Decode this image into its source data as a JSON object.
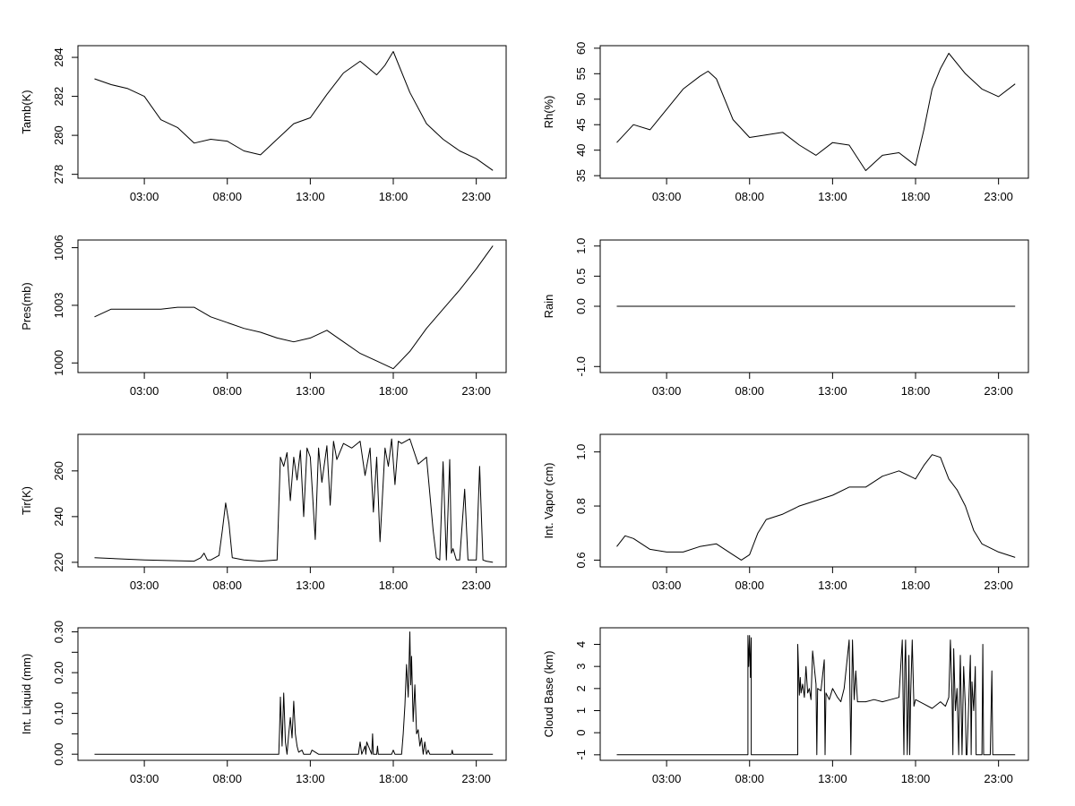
{
  "chart_data": [
    {
      "type": "line",
      "ylabel": "Tamb(K)",
      "xlim": [
        -1,
        24.8
      ],
      "ylim": [
        277.8,
        284.6
      ],
      "xticks": [
        3,
        8,
        13,
        18,
        23
      ],
      "xtick_labels": [
        "03:00",
        "08:00",
        "13:00",
        "18:00",
        "23:00"
      ],
      "yticks": [
        278,
        280,
        282,
        284
      ],
      "ytick_labels": [
        "278",
        "280",
        "282",
        "284"
      ],
      "series": [
        {
          "color": "#000000",
          "x": [
            0,
            1,
            2,
            3,
            4,
            5,
            6,
            7,
            8,
            9,
            10,
            11,
            12,
            13,
            14,
            15,
            16,
            17,
            17.5,
            18,
            19,
            20,
            21,
            22,
            23,
            24
          ],
          "y": [
            282.9,
            282.6,
            282.4,
            282.0,
            280.8,
            280.4,
            279.6,
            279.8,
            279.7,
            279.2,
            279.0,
            279.8,
            280.6,
            280.9,
            282.1,
            283.2,
            283.8,
            283.1,
            283.6,
            284.3,
            282.2,
            280.6,
            279.8,
            279.2,
            278.8,
            278.2
          ]
        }
      ]
    },
    {
      "type": "line",
      "ylabel": "Rh(%)",
      "xlim": [
        -1,
        24.8
      ],
      "ylim": [
        34.5,
        60.5
      ],
      "xticks": [
        3,
        8,
        13,
        18,
        23
      ],
      "xtick_labels": [
        "03:00",
        "08:00",
        "13:00",
        "18:00",
        "23:00"
      ],
      "yticks": [
        35,
        40,
        45,
        50,
        55,
        60
      ],
      "ytick_labels": [
        "35",
        "40",
        "45",
        "50",
        "55",
        "60"
      ],
      "series": [
        {
          "color": "#000000",
          "x": [
            0,
            1,
            2,
            3,
            4,
            5,
            5.5,
            6,
            7,
            8,
            9,
            10,
            11,
            12,
            13,
            14,
            15,
            16,
            17,
            18,
            18.5,
            19,
            19.5,
            20,
            21,
            22,
            23,
            24
          ],
          "y": [
            41.5,
            45.0,
            44.0,
            48.0,
            52.0,
            54.5,
            55.5,
            54.0,
            46.0,
            42.5,
            43.0,
            43.5,
            41.0,
            39.0,
            41.5,
            41.0,
            36.0,
            39.0,
            39.5,
            37.0,
            44.0,
            52.0,
            56.0,
            59.0,
            55.0,
            52.0,
            50.5,
            53.0
          ]
        }
      ]
    },
    {
      "type": "line",
      "ylabel": "Pres(mb)",
      "xlim": [
        -1,
        24.8
      ],
      "ylim": [
        999.5,
        1006.4
      ],
      "xticks": [
        3,
        8,
        13,
        18,
        23
      ],
      "xtick_labels": [
        "03:00",
        "08:00",
        "13:00",
        "18:00",
        "23:00"
      ],
      "yticks": [
        1000,
        1003,
        1006
      ],
      "ytick_labels": [
        "1000",
        "1003",
        "1006"
      ],
      "series": [
        {
          "color": "#000000",
          "x": [
            0,
            1,
            2,
            3,
            4,
            5,
            6,
            7,
            8,
            9,
            10,
            11,
            12,
            13,
            14,
            15,
            16,
            17,
            18,
            19,
            20,
            21,
            22,
            23,
            24
          ],
          "y": [
            1002.4,
            1002.8,
            1002.8,
            1002.8,
            1002.8,
            1002.9,
            1002.9,
            1002.4,
            1002.1,
            1001.8,
            1001.6,
            1001.3,
            1001.1,
            1001.3,
            1001.7,
            1001.1,
            1000.5,
            1000.1,
            999.7,
            1000.6,
            1001.8,
            1002.8,
            1003.8,
            1004.9,
            1006.1
          ]
        }
      ]
    },
    {
      "type": "line",
      "ylabel": "Rain",
      "xlim": [
        -1,
        24.8
      ],
      "ylim": [
        -1.1,
        1.1
      ],
      "xticks": [
        3,
        8,
        13,
        18,
        23
      ],
      "xtick_labels": [
        "03:00",
        "08:00",
        "13:00",
        "18:00",
        "23:00"
      ],
      "yticks": [
        -1.0,
        0.0,
        0.5,
        1.0
      ],
      "ytick_labels": [
        "-1.0",
        "0.0",
        "0.5",
        "1.0"
      ],
      "series": [
        {
          "color": "#000000",
          "x": [
            0,
            24
          ],
          "y": [
            0,
            0
          ]
        }
      ]
    },
    {
      "type": "line",
      "ylabel": "Tir(K)",
      "xlim": [
        -1,
        24.8
      ],
      "ylim": [
        218,
        276
      ],
      "xticks": [
        3,
        8,
        13,
        18,
        23
      ],
      "xtick_labels": [
        "03:00",
        "08:00",
        "13:00",
        "18:00",
        "23:00"
      ],
      "yticks": [
        220,
        240,
        260
      ],
      "ytick_labels": [
        "220",
        "240",
        "260"
      ],
      "series": [
        {
          "color": "#000000",
          "x": [
            0,
            3,
            6,
            6.4,
            6.6,
            6.8,
            7,
            7.5,
            7.7,
            7.9,
            8.1,
            8.3,
            9,
            10,
            11,
            11.2,
            11.4,
            11.6,
            11.8,
            12,
            12.2,
            12.4,
            12.6,
            12.8,
            13,
            13.3,
            13.5,
            13.7,
            14,
            14.2,
            14.4,
            14.6,
            15,
            15.5,
            16,
            16.3,
            16.6,
            16.8,
            17,
            17.2,
            17.5,
            17.7,
            17.9,
            18.1,
            18.3,
            18.5,
            19,
            19.5,
            20,
            20.2,
            20.4,
            20.6,
            20.8,
            21,
            21.2,
            21.4,
            21.5,
            21.6,
            21.8,
            22,
            22.3,
            22.5,
            23,
            23.2,
            23.4,
            23.6,
            24
          ],
          "y": [
            222,
            221,
            220.5,
            222,
            224,
            221,
            221,
            223,
            234,
            246,
            237,
            222,
            221,
            220.5,
            221,
            266,
            262,
            268,
            247,
            266,
            256,
            269,
            240,
            270,
            266,
            230,
            270,
            255,
            271,
            245,
            273,
            265,
            272,
            270,
            273,
            258,
            270,
            242,
            266,
            229,
            270,
            262,
            274,
            254,
            273,
            272,
            274,
            263,
            266,
            250,
            234,
            222,
            221,
            264,
            221,
            265,
            224,
            226,
            221,
            221,
            252,
            221,
            221,
            262,
            221,
            220.5,
            220
          ]
        }
      ]
    },
    {
      "type": "line",
      "ylabel": "Int. Vapor (cm)",
      "xlim": [
        -1,
        24.8
      ],
      "ylim": [
        0.575,
        1.065
      ],
      "xticks": [
        3,
        8,
        13,
        18,
        23
      ],
      "xtick_labels": [
        "03:00",
        "08:00",
        "13:00",
        "18:00",
        "23:00"
      ],
      "yticks": [
        0.6,
        0.8,
        1.0
      ],
      "ytick_labels": [
        "0.6",
        "0.8",
        "1.0"
      ],
      "series": [
        {
          "color": "#000000",
          "x": [
            0,
            0.5,
            1,
            2,
            3,
            4,
            5,
            6,
            7,
            7.5,
            8,
            8.5,
            9,
            10,
            11,
            12,
            13,
            14,
            15,
            16,
            17,
            18,
            18.5,
            19,
            19.5,
            20,
            20.5,
            21,
            21.5,
            22,
            23,
            24
          ],
          "y": [
            0.65,
            0.69,
            0.68,
            0.64,
            0.63,
            0.63,
            0.65,
            0.66,
            0.62,
            0.6,
            0.62,
            0.7,
            0.75,
            0.77,
            0.8,
            0.82,
            0.84,
            0.87,
            0.87,
            0.91,
            0.93,
            0.9,
            0.95,
            0.99,
            0.98,
            0.9,
            0.86,
            0.8,
            0.71,
            0.66,
            0.63,
            0.61
          ]
        }
      ]
    },
    {
      "type": "line",
      "ylabel": "Int. Liquid (mm)",
      "xlim": [
        -1,
        24.8
      ],
      "ylim": [
        -0.015,
        0.31
      ],
      "xticks": [
        3,
        8,
        13,
        18,
        23
      ],
      "xtick_labels": [
        "03:00",
        "08:00",
        "13:00",
        "18:00",
        "23:00"
      ],
      "yticks": [
        0.0,
        0.1,
        0.2,
        0.3
      ],
      "ytick_labels": [
        "0.00",
        "0.10",
        "0.20",
        "0.30"
      ],
      "minor_yticks": [
        0.05,
        0.15,
        0.25
      ],
      "series": [
        {
          "color": "#000000",
          "x": [
            0,
            11,
            11.1,
            11.15,
            11.2,
            11.3,
            11.4,
            11.5,
            11.6,
            11.7,
            11.8,
            11.9,
            12,
            12.1,
            12.2,
            12.3,
            12.5,
            12.6,
            12.7,
            13,
            13.1,
            13.5,
            15.9,
            16,
            16.1,
            16.3,
            16.35,
            16.4,
            16.7,
            16.75,
            16.8,
            17,
            17.05,
            17.1,
            17.9,
            18,
            18.1,
            18.5,
            18.6,
            18.7,
            18.8,
            18.9,
            19,
            19.05,
            19.1,
            19.2,
            19.3,
            19.4,
            19.5,
            19.6,
            19.7,
            19.8,
            19.9,
            20,
            20.1,
            20.2,
            21.5,
            21.55,
            21.6,
            22,
            24
          ],
          "y": [
            0,
            0,
            0,
            0.06,
            0.14,
            0.02,
            0.15,
            0.03,
            0,
            0.05,
            0.09,
            0.04,
            0.13,
            0.05,
            0.02,
            0.005,
            0.01,
            0,
            0,
            0,
            0.01,
            0,
            0,
            0.03,
            0,
            0.02,
            0,
            0.03,
            0,
            0.05,
            0,
            0,
            0.02,
            0,
            0,
            0.01,
            0,
            0,
            0.05,
            0.12,
            0.22,
            0.14,
            0.3,
            0.17,
            0.24,
            0.08,
            0.17,
            0.05,
            0.06,
            0.02,
            0.04,
            0,
            0.03,
            0,
            0.01,
            0,
            0,
            0.01,
            0,
            0,
            0
          ]
        }
      ]
    },
    {
      "type": "line",
      "ylabel": "Cloud Base (km)",
      "xlim": [
        -1,
        24.8
      ],
      "ylim": [
        -1.25,
        4.75
      ],
      "xticks": [
        3,
        8,
        13,
        18,
        23
      ],
      "xtick_labels": [
        "03:00",
        "08:00",
        "13:00",
        "18:00",
        "23:00"
      ],
      "yticks": [
        -1,
        0,
        1,
        2,
        3,
        4
      ],
      "ytick_labels": [
        "-1",
        "0",
        "1",
        "2",
        "3",
        "4"
      ],
      "series": [
        {
          "color": "#000000",
          "x": [
            0,
            7.9,
            7.9,
            7.95,
            8,
            8.05,
            8.1,
            8.1,
            8.15,
            8.15,
            10.9,
            10.9,
            11,
            11.05,
            11.1,
            11.2,
            11.3,
            11.4,
            11.5,
            11.6,
            11.7,
            11.8,
            12,
            12.05,
            12.1,
            12.3,
            12.5,
            12.55,
            12.6,
            12.8,
            13,
            13.3,
            13.5,
            13.7,
            14,
            14.1,
            14.15,
            14.2,
            14.3,
            14.4,
            14.5,
            15,
            15.5,
            16,
            16.5,
            17,
            17.2,
            17.3,
            17.35,
            17.4,
            17.5,
            17.6,
            17.65,
            17.7,
            17.8,
            17.9,
            18,
            18.5,
            19,
            19.5,
            19.8,
            20,
            20.1,
            20.2,
            20.25,
            20.3,
            20.4,
            20.5,
            20.6,
            20.65,
            20.7,
            20.8,
            20.9,
            21,
            21.05,
            21.1,
            21.3,
            21.35,
            21.4,
            21.5,
            21.6,
            21.65,
            22,
            22.05,
            22.1,
            22.5,
            22.6,
            22.65,
            22.7,
            23,
            24
          ],
          "y": [
            -1,
            -1,
            4.4,
            3.0,
            4.4,
            2.5,
            4.3,
            -1,
            -1,
            -1,
            -1,
            4.0,
            1.7,
            2.5,
            1.8,
            2.2,
            1.6,
            3.0,
            1.8,
            2.0,
            1.5,
            3.7,
            2.2,
            -1,
            2.0,
            1.9,
            3.3,
            -1,
            1.8,
            1.5,
            2.0,
            1.6,
            1.4,
            2.0,
            4.2,
            -1,
            1.7,
            4.2,
            1.5,
            2.8,
            1.4,
            1.4,
            1.5,
            1.4,
            1.5,
            1.6,
            4.2,
            -1,
            3.0,
            4.2,
            -1,
            3.5,
            -1,
            1.6,
            4.2,
            1.2,
            1.5,
            1.3,
            1.1,
            1.4,
            1.2,
            1.6,
            4.2,
            1.5,
            -1,
            3.8,
            1.0,
            2.0,
            -1,
            1.8,
            3.5,
            -1,
            3.0,
            1.2,
            -1,
            -1,
            3.5,
            -1,
            2.3,
            1.0,
            3.0,
            -1,
            -1,
            4.0,
            -1,
            -1,
            2.8,
            -1,
            -1,
            -1,
            -1
          ]
        }
      ]
    }
  ]
}
